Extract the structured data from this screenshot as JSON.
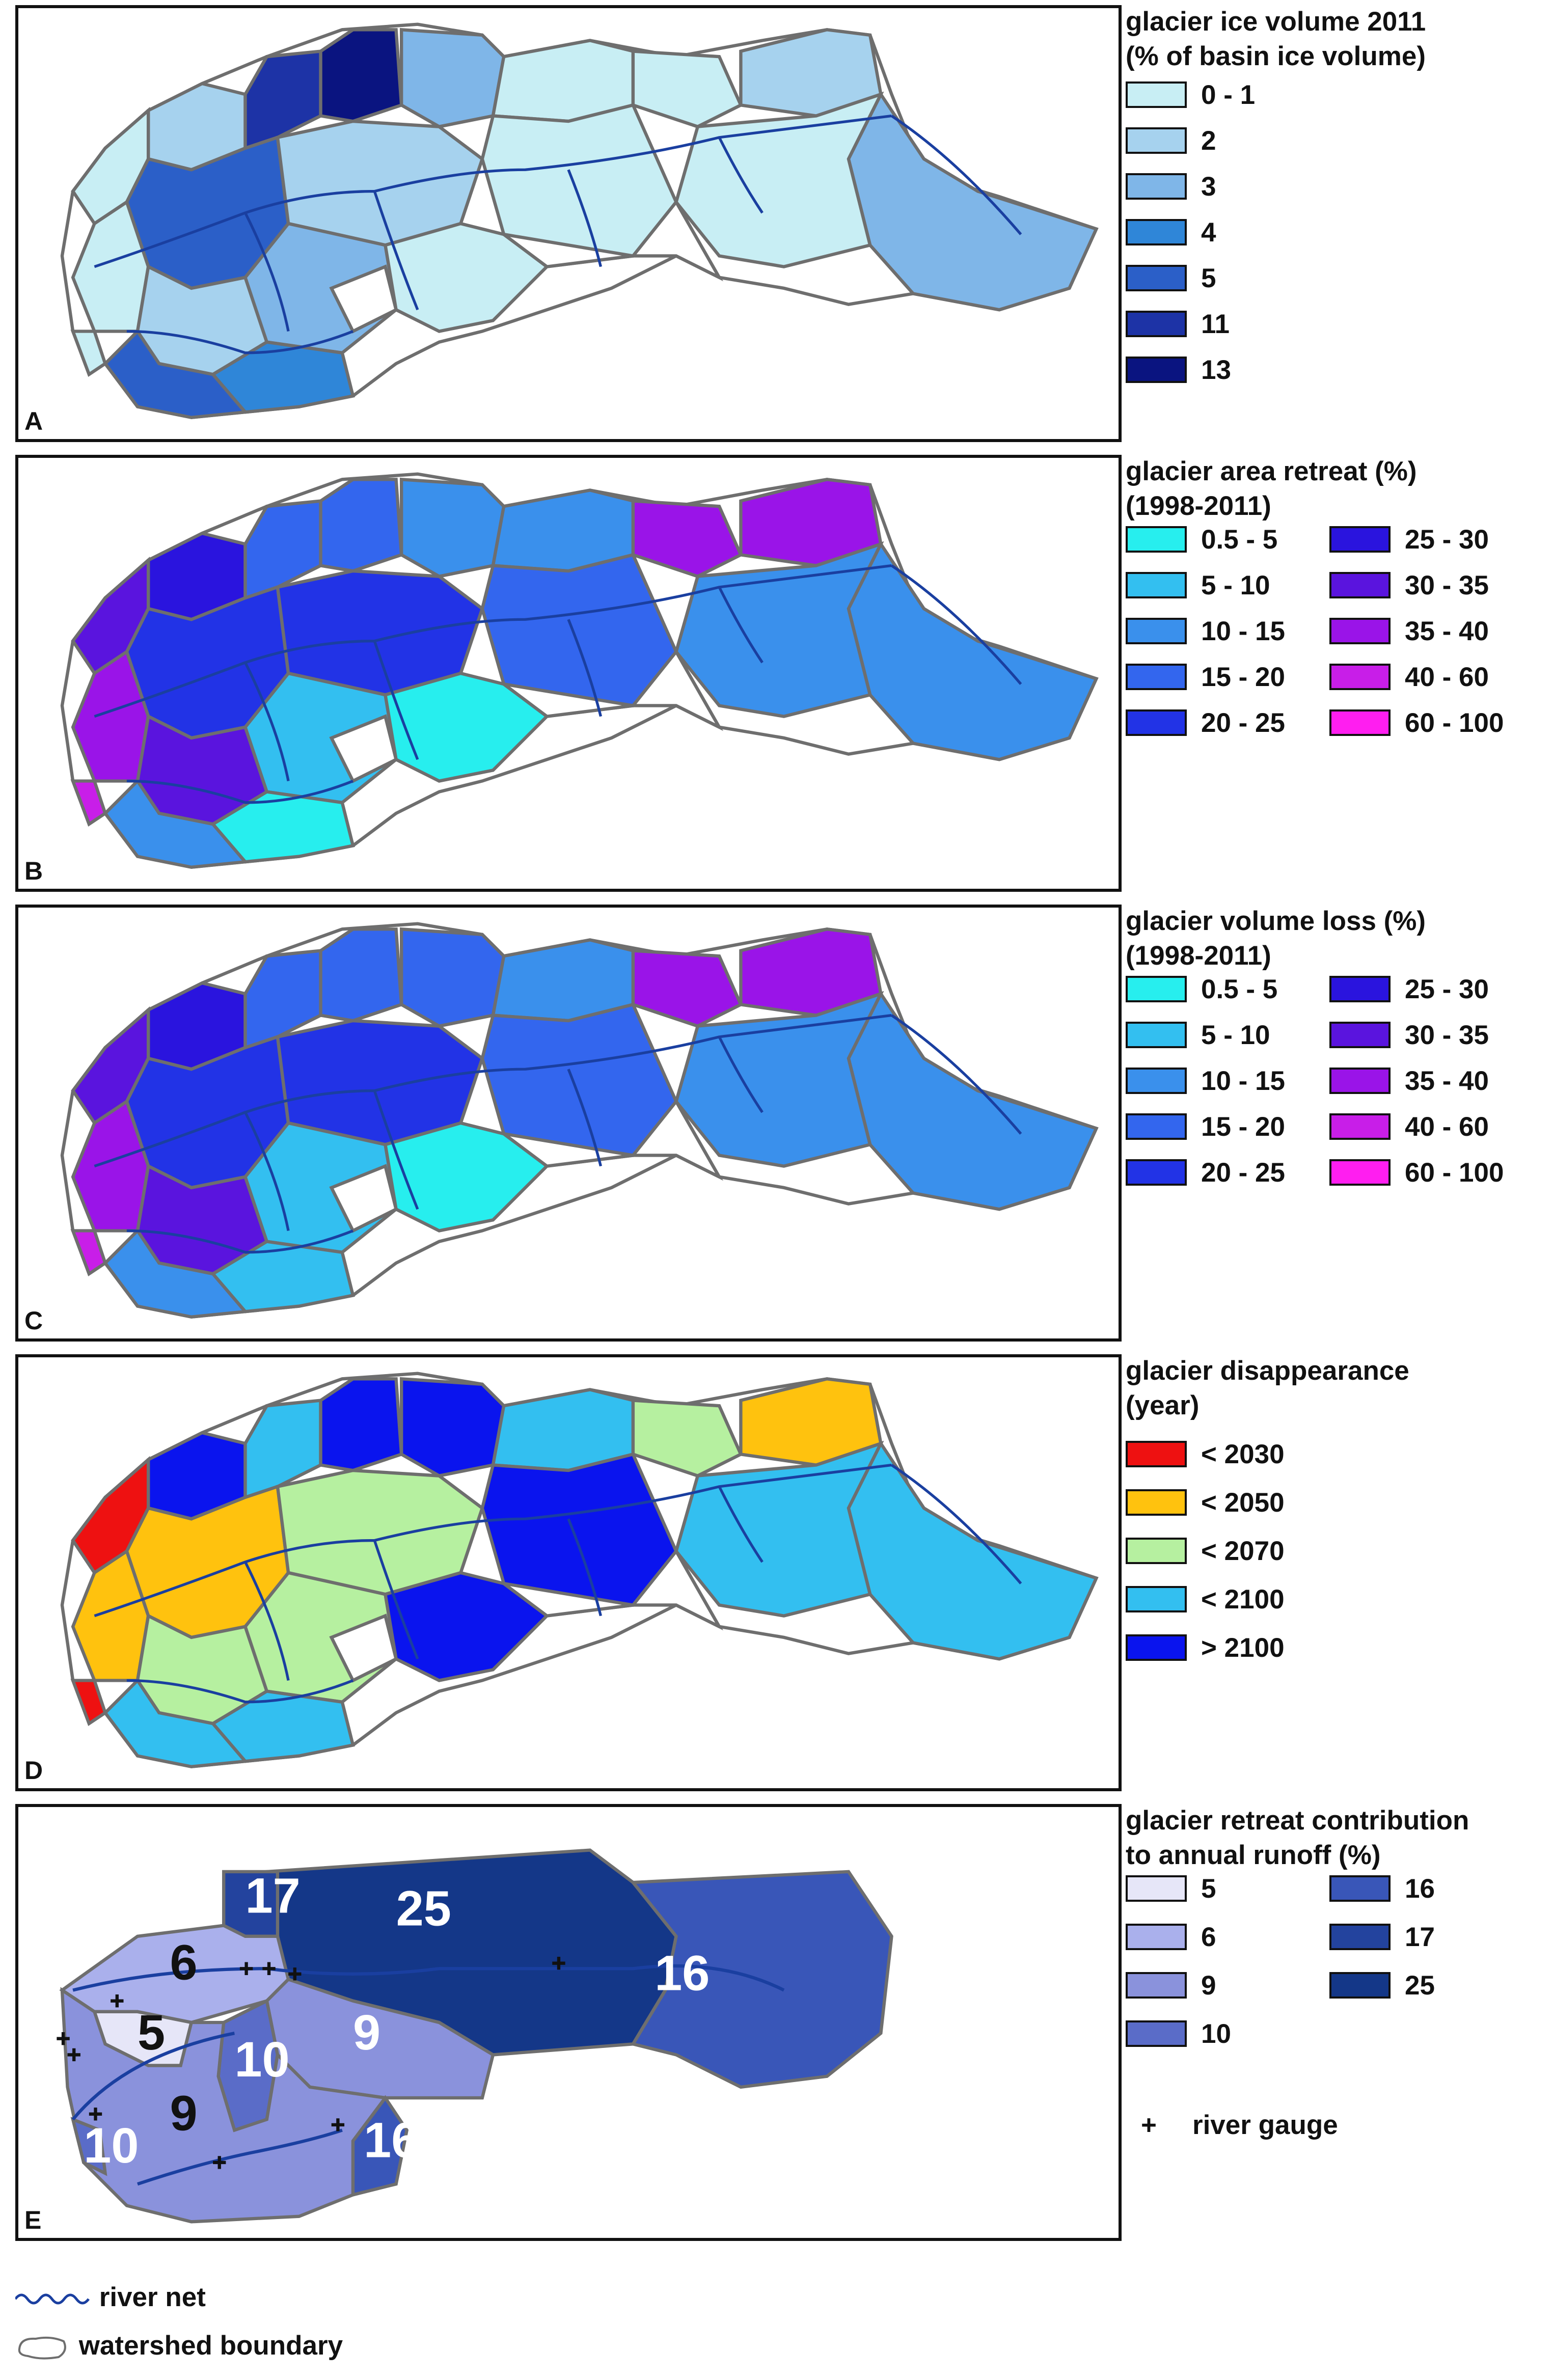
{
  "panels": [
    {
      "letter": "A",
      "legend_title_lines": [
        "glacier ice volume 2011",
        "(% of basin ice volume)"
      ],
      "classes": [
        {
          "label": "0 - 1",
          "color": "#c8eef4"
        },
        {
          "label": "2",
          "color": "#a6d2ee"
        },
        {
          "label": "3",
          "color": "#7fb6e8"
        },
        {
          "label": "4",
          "color": "#2f86d8"
        },
        {
          "label": "5",
          "color": "#2b5fc8"
        },
        {
          "label": "11",
          "color": "#1d33a6"
        },
        {
          "label": "13",
          "color": "#0a1480"
        }
      ]
    },
    {
      "letter": "B",
      "legend_title_lines": [
        "glacier area retreat (%)",
        "(1998-2011)"
      ],
      "classes": [
        {
          "label": "0.5 - 5",
          "color": "#27eeee"
        },
        {
          "label": "5 - 10",
          "color": "#33bff0"
        },
        {
          "label": "10 - 15",
          "color": "#3a90ec"
        },
        {
          "label": "15 - 20",
          "color": "#3366ee"
        },
        {
          "label": "20 - 25",
          "color": "#2233e6"
        },
        {
          "label": "25 - 30",
          "color": "#2a14de"
        },
        {
          "label": "30 - 35",
          "color": "#5a14de"
        },
        {
          "label": "35 - 40",
          "color": "#9a14e8"
        },
        {
          "label": "40 - 60",
          "color": "#c81ee8"
        },
        {
          "label": "60 - 100",
          "color": "#ff1ef0"
        }
      ]
    },
    {
      "letter": "C",
      "legend_title_lines": [
        "glacier volume loss (%)",
        "(1998-2011)"
      ],
      "classes": [
        {
          "label": "0.5 - 5",
          "color": "#27eeee"
        },
        {
          "label": "5 - 10",
          "color": "#33bff0"
        },
        {
          "label": "10 - 15",
          "color": "#3a90ec"
        },
        {
          "label": "15 - 20",
          "color": "#3366ee"
        },
        {
          "label": "20 - 25",
          "color": "#2233e6"
        },
        {
          "label": "25 - 30",
          "color": "#2a14de"
        },
        {
          "label": "30 - 35",
          "color": "#5a14de"
        },
        {
          "label": "35 - 40",
          "color": "#9a14e8"
        },
        {
          "label": "40 - 60",
          "color": "#c81ee8"
        },
        {
          "label": "60 - 100",
          "color": "#ff1ef0"
        }
      ]
    },
    {
      "letter": "D",
      "legend_title_lines": [
        "glacier disappearance",
        "(year)"
      ],
      "classes": [
        {
          "label": "< 2030",
          "color": "#ee1111"
        },
        {
          "label": "< 2050",
          "color": "#ffc20e"
        },
        {
          "label": "< 2070",
          "color": "#b6f0a0"
        },
        {
          "label": "< 2100",
          "color": "#33bff0"
        },
        {
          "label": "> 2100",
          "color": "#0a14ee"
        }
      ]
    },
    {
      "letter": "E",
      "legend_title_lines": [
        "glacier retreat contribution",
        "to annual runoff (%)"
      ],
      "classes": [
        {
          "label": "5",
          "color": "#e6e6f8"
        },
        {
          "label": "6",
          "color": "#aab0ec"
        },
        {
          "label": "9",
          "color": "#8a92dc"
        },
        {
          "label": "10",
          "color": "#5a6cc8"
        },
        {
          "label": "16",
          "color": "#3956b8"
        },
        {
          "label": "17",
          "color": "#23439e"
        },
        {
          "label": "25",
          "color": "#143788"
        }
      ],
      "gauge_label": "river gauge",
      "gauge_symbol": "+",
      "basin_labels": [
        "17",
        "25",
        "16",
        "6",
        "5",
        "10",
        "9",
        "9",
        "10",
        "16"
      ]
    }
  ],
  "map_legend": {
    "river_label": "river net",
    "boundary_label": "watershed boundary"
  },
  "colors": {
    "river": "#1a3fa0",
    "boundary": "#6e6e6e",
    "white_basin": "#ffffff"
  }
}
